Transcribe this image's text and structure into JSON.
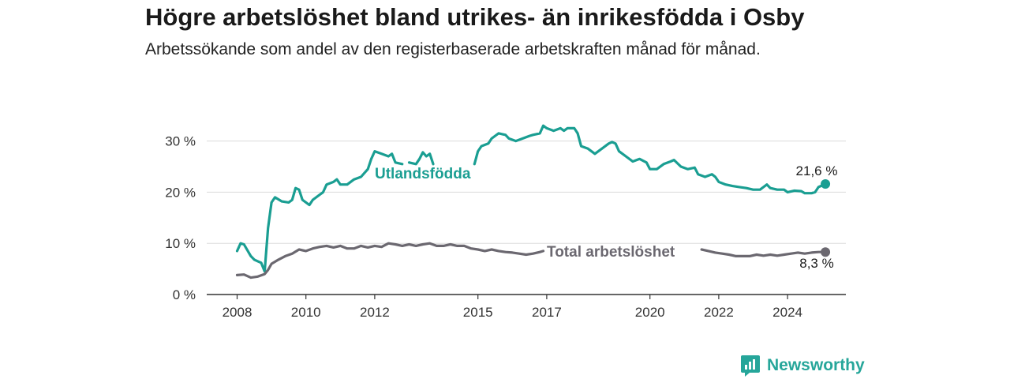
{
  "title": "Högre arbetslöshet bland utrikes- än inrikesfödda i Osby",
  "subtitle": "Arbetssökande som andel av den registerbaserade arbetskraften månad för månad.",
  "brand": {
    "name": "Newsworthy",
    "icon": "newsworthy-logo-icon"
  },
  "colors": {
    "foreign": "#1a9e92",
    "total": "#6b6870",
    "grid": "#dcdcdc",
    "axis": "#333333"
  },
  "chart_data": {
    "type": "line",
    "x_ticks": [
      "2008",
      "2010",
      "2012",
      "2015",
      "2017",
      "2020",
      "2022",
      "2024"
    ],
    "y_ticks": [
      "0 %",
      "10 %",
      "20 %",
      "30 %"
    ],
    "ylim": [
      0,
      35
    ],
    "grid": true,
    "series": [
      {
        "name": "Utlandsfödda",
        "color": "#1a9e92",
        "end_label": "21,6 %",
        "points": [
          [
            2008.0,
            8.5
          ],
          [
            2008.1,
            10.0
          ],
          [
            2008.2,
            9.8
          ],
          [
            2008.4,
            7.5
          ],
          [
            2008.5,
            6.8
          ],
          [
            2008.6,
            6.5
          ],
          [
            2008.7,
            6.2
          ],
          [
            2008.8,
            4.5
          ],
          [
            2008.9,
            13.0
          ],
          [
            2009.0,
            18.0
          ],
          [
            2009.1,
            19.0
          ],
          [
            2009.3,
            18.2
          ],
          [
            2009.5,
            18.0
          ],
          [
            2009.6,
            18.5
          ],
          [
            2009.7,
            20.8
          ],
          [
            2009.8,
            20.5
          ],
          [
            2009.9,
            18.5
          ],
          [
            2010.1,
            17.5
          ],
          [
            2010.2,
            18.5
          ],
          [
            2010.4,
            19.5
          ],
          [
            2010.5,
            20.0
          ],
          [
            2010.6,
            21.5
          ],
          [
            2010.8,
            22.0
          ],
          [
            2010.9,
            22.5
          ],
          [
            2011.0,
            21.5
          ],
          [
            2011.2,
            21.5
          ],
          [
            2011.4,
            22.5
          ],
          [
            2011.6,
            23.0
          ],
          [
            2011.8,
            24.5
          ],
          [
            2011.9,
            26.5
          ],
          [
            2012.0,
            28.0
          ],
          [
            2012.2,
            27.5
          ],
          [
            2012.4,
            27.0
          ],
          [
            2012.5,
            27.5
          ],
          [
            2012.6,
            25.8
          ],
          [
            2012.8,
            25.5
          ],
          null,
          [
            2013.0,
            25.8
          ],
          [
            2013.2,
            25.5
          ],
          [
            2013.3,
            26.5
          ],
          [
            2013.4,
            27.8
          ],
          [
            2013.5,
            27.0
          ],
          [
            2013.6,
            27.5
          ],
          [
            2013.7,
            25.5
          ],
          null,
          [
            2014.9,
            25.5
          ],
          [
            2015.0,
            28.0
          ],
          [
            2015.1,
            29.0
          ],
          [
            2015.3,
            29.5
          ],
          [
            2015.4,
            30.5
          ],
          [
            2015.6,
            31.5
          ],
          [
            2015.8,
            31.2
          ],
          [
            2015.9,
            30.5
          ],
          [
            2016.1,
            30.0
          ],
          [
            2016.3,
            30.5
          ],
          [
            2016.5,
            31.0
          ],
          [
            2016.6,
            31.2
          ],
          [
            2016.8,
            31.5
          ],
          [
            2016.9,
            33.0
          ],
          [
            2017.0,
            32.5
          ],
          [
            2017.2,
            32.0
          ],
          [
            2017.4,
            32.5
          ],
          [
            2017.5,
            32.0
          ],
          [
            2017.6,
            32.5
          ],
          [
            2017.8,
            32.5
          ],
          [
            2017.9,
            31.5
          ],
          [
            2018.0,
            29.0
          ],
          [
            2018.2,
            28.5
          ],
          [
            2018.4,
            27.5
          ],
          [
            2018.6,
            28.5
          ],
          [
            2018.8,
            29.5
          ],
          [
            2018.9,
            29.8
          ],
          [
            2019.0,
            29.5
          ],
          [
            2019.1,
            28.0
          ],
          [
            2019.3,
            27.0
          ],
          [
            2019.5,
            26.0
          ],
          [
            2019.7,
            26.5
          ],
          [
            2019.9,
            25.8
          ],
          [
            2020.0,
            24.5
          ],
          [
            2020.2,
            24.5
          ],
          [
            2020.4,
            25.5
          ],
          [
            2020.6,
            26.0
          ],
          [
            2020.7,
            26.3
          ],
          [
            2020.9,
            25.0
          ],
          [
            2021.1,
            24.5
          ],
          [
            2021.3,
            24.8
          ],
          [
            2021.4,
            23.5
          ],
          [
            2021.6,
            23.0
          ],
          [
            2021.8,
            23.5
          ],
          [
            2021.9,
            23.0
          ],
          [
            2022.0,
            22.0
          ],
          [
            2022.2,
            21.5
          ],
          [
            2022.4,
            21.2
          ],
          [
            2022.6,
            21.0
          ],
          [
            2022.8,
            20.8
          ],
          [
            2023.0,
            20.5
          ],
          [
            2023.2,
            20.5
          ],
          [
            2023.3,
            21.0
          ],
          [
            2023.4,
            21.5
          ],
          [
            2023.5,
            20.8
          ],
          [
            2023.7,
            20.5
          ],
          [
            2023.9,
            20.5
          ],
          [
            2024.0,
            20.0
          ],
          [
            2024.2,
            20.3
          ],
          [
            2024.4,
            20.2
          ],
          [
            2024.5,
            19.8
          ],
          [
            2024.7,
            19.8
          ],
          [
            2024.8,
            20.0
          ],
          [
            2024.9,
            21.0
          ],
          [
            2025.0,
            21.3
          ],
          [
            2025.1,
            21.6
          ]
        ]
      },
      {
        "name": "Total arbetslöshet",
        "color": "#6b6870",
        "end_label": "8,3 %",
        "points": [
          [
            2008.0,
            3.8
          ],
          [
            2008.2,
            3.9
          ],
          [
            2008.4,
            3.3
          ],
          [
            2008.6,
            3.5
          ],
          [
            2008.8,
            4.0
          ],
          [
            2008.9,
            4.8
          ],
          [
            2009.0,
            6.0
          ],
          [
            2009.2,
            6.8
          ],
          [
            2009.4,
            7.5
          ],
          [
            2009.6,
            8.0
          ],
          [
            2009.8,
            8.8
          ],
          [
            2010.0,
            8.5
          ],
          [
            2010.2,
            9.0
          ],
          [
            2010.4,
            9.3
          ],
          [
            2010.6,
            9.5
          ],
          [
            2010.8,
            9.2
          ],
          [
            2011.0,
            9.5
          ],
          [
            2011.2,
            9.0
          ],
          [
            2011.4,
            9.0
          ],
          [
            2011.6,
            9.5
          ],
          [
            2011.8,
            9.2
          ],
          [
            2012.0,
            9.5
          ],
          [
            2012.2,
            9.3
          ],
          [
            2012.4,
            10.0
          ],
          [
            2012.6,
            9.8
          ],
          [
            2012.8,
            9.5
          ],
          [
            2013.0,
            9.8
          ],
          [
            2013.2,
            9.5
          ],
          [
            2013.4,
            9.8
          ],
          [
            2013.6,
            10.0
          ],
          [
            2013.8,
            9.5
          ],
          [
            2014.0,
            9.5
          ],
          [
            2014.2,
            9.8
          ],
          [
            2014.4,
            9.5
          ],
          [
            2014.6,
            9.5
          ],
          [
            2014.8,
            9.0
          ],
          [
            2015.0,
            8.8
          ],
          [
            2015.2,
            8.5
          ],
          [
            2015.4,
            8.8
          ],
          [
            2015.6,
            8.5
          ],
          [
            2015.8,
            8.3
          ],
          [
            2016.0,
            8.2
          ],
          [
            2016.2,
            8.0
          ],
          [
            2016.4,
            7.8
          ],
          [
            2016.6,
            8.0
          ],
          [
            2016.8,
            8.3
          ],
          [
            2016.9,
            8.5
          ],
          null,
          [
            2021.5,
            8.8
          ],
          [
            2021.7,
            8.5
          ],
          [
            2021.9,
            8.2
          ],
          [
            2022.1,
            8.0
          ],
          [
            2022.3,
            7.8
          ],
          [
            2022.5,
            7.5
          ],
          [
            2022.7,
            7.5
          ],
          [
            2022.9,
            7.5
          ],
          [
            2023.1,
            7.8
          ],
          [
            2023.3,
            7.6
          ],
          [
            2023.5,
            7.8
          ],
          [
            2023.7,
            7.6
          ],
          [
            2023.9,
            7.8
          ],
          [
            2024.1,
            8.0
          ],
          [
            2024.3,
            8.2
          ],
          [
            2024.5,
            8.0
          ],
          [
            2024.7,
            8.2
          ],
          [
            2024.9,
            8.3
          ],
          [
            2025.1,
            8.3
          ]
        ]
      }
    ]
  }
}
